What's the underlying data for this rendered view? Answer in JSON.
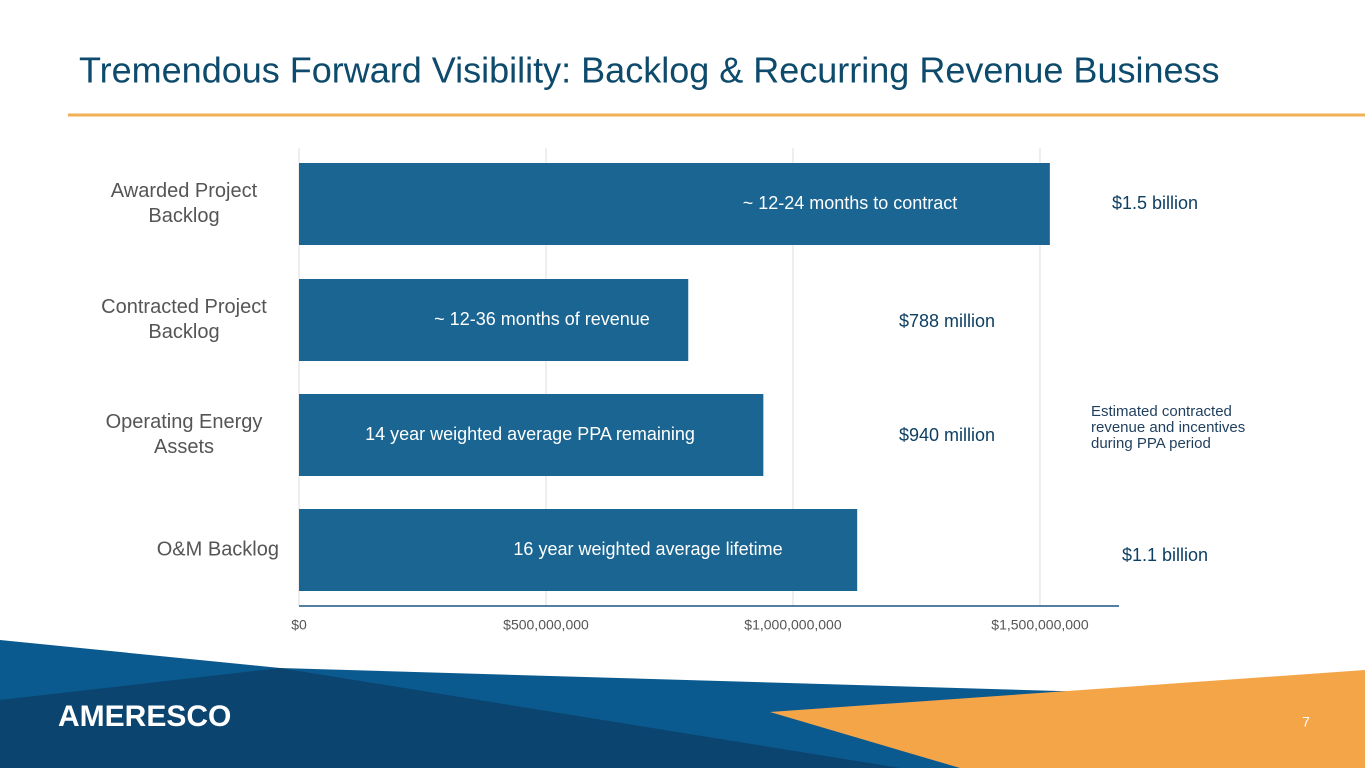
{
  "chart_data": {
    "type": "bar",
    "orientation": "horizontal",
    "title": "Tremendous Forward Visibility: Backlog & Recurring Revenue Business",
    "categories": [
      "Awarded Project Backlog",
      "Contracted Project Backlog",
      "Operating Energy Assets",
      "O&M Backlog"
    ],
    "values": [
      1520000000,
      788000000,
      940000000,
      1130000000
    ],
    "value_labels": [
      "$1.5 billion",
      "$788 million",
      "$940 million",
      "$1.1 billion"
    ],
    "bar_annotations": [
      "~ 12-24 months to contract",
      "~ 12-36 months of revenue",
      "14 year weighted average PPA remaining",
      "16 year weighted average lifetime"
    ],
    "annotation": "Estimated contracted revenue and incentives during PPA period",
    "color": "#1a6592",
    "xlim": [
      0,
      1660000000
    ],
    "xticks": [
      {
        "value": 0,
        "label": "$0"
      },
      {
        "value": 500000000,
        "label": "$500,000,000"
      },
      {
        "value": 1000000000,
        "label": "$1,000,000,000"
      },
      {
        "value": 1500000000,
        "label": "$1,500,000,000"
      }
    ],
    "grid": true
  },
  "footer": {
    "logo": "AMERESCO",
    "page": "7"
  }
}
